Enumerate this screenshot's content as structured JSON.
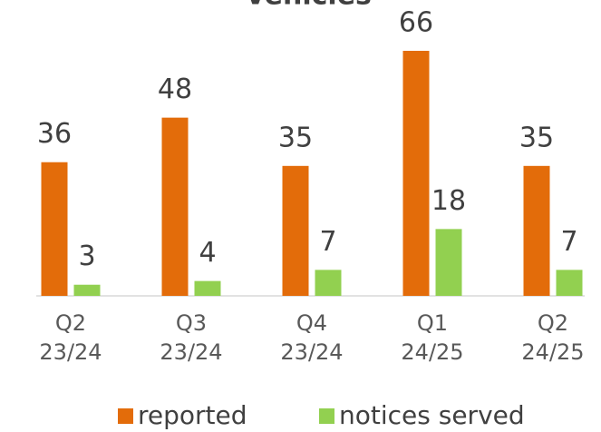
{
  "chart_data": {
    "type": "bar",
    "title": "Vehicles",
    "categories": [
      "Q2\n23/24",
      "Q3\n23/24",
      "Q4\n23/24",
      "Q1\n24/25",
      "Q2\n24/25"
    ],
    "series": [
      {
        "name": "reported",
        "color": "#e36c0a",
        "values": [
          36,
          48,
          35,
          66,
          35
        ]
      },
      {
        "name": "notices served",
        "color": "#92d050",
        "values": [
          3,
          4,
          7,
          18,
          7
        ]
      }
    ],
    "legend": "bottom"
  }
}
